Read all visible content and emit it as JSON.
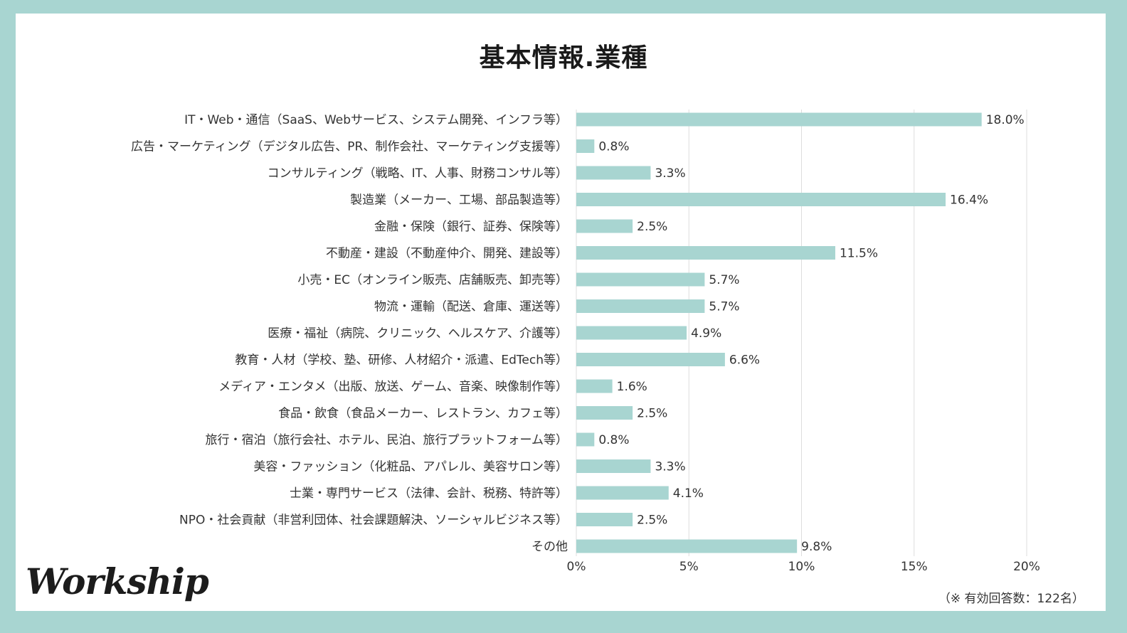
{
  "colors": {
    "bar": "#a8d5d1",
    "frame": "#a8d5d1",
    "grid": "#dddddd",
    "text": "#333333"
  },
  "logo": {
    "text": "Workship"
  },
  "note": "（※ 有効回答数：122名）",
  "chart_data": {
    "type": "bar",
    "orientation": "horizontal",
    "title": "基本情報.業種",
    "xlabel": "",
    "ylabel": "",
    "xlim": [
      0,
      20
    ],
    "grid": true,
    "xticks": [
      "0%",
      "5%",
      "10%",
      "15%",
      "20%"
    ],
    "categories": [
      "IT・Web・通信（SaaS、Webサービス、システム開発、インフラ等）",
      "広告・マーケティング（デジタル広告、PR、制作会社、マーケティング支援等）",
      "コンサルティング（戦略、IT、人事、財務コンサル等）",
      "製造業（メーカー、工場、部品製造等）",
      "金融・保険（銀行、証券、保険等）",
      "不動産・建設（不動産仲介、開発、建設等）",
      "小売・EC（オンライン販売、店舗販売、卸売等）",
      "物流・運輸（配送、倉庫、運送等）",
      "医療・福祉（病院、クリニック、ヘルスケア、介護等）",
      "教育・人材（学校、塾、研修、人材紹介・派遣、EdTech等）",
      "メディア・エンタメ（出版、放送、ゲーム、音楽、映像制作等）",
      "食品・飲食（食品メーカー、レストラン、カフェ等）",
      "旅行・宿泊（旅行会社、ホテル、民泊、旅行プラットフォーム等）",
      "美容・ファッション（化粧品、アパレル、美容サロン等）",
      "士業・専門サービス（法律、会計、税務、特許等）",
      "NPO・社会貢献（非営利団体、社会課題解決、ソーシャルビジネス等）",
      "その他"
    ],
    "values": [
      18.0,
      0.8,
      3.3,
      16.4,
      2.5,
      11.5,
      5.7,
      5.7,
      4.9,
      6.6,
      1.6,
      2.5,
      0.8,
      3.3,
      4.1,
      2.5,
      9.8
    ],
    "labels": [
      "18.0%",
      "0.8%",
      "3.3%",
      "16.4%",
      "2.5%",
      "11.5%",
      "5.7%",
      "5.7%",
      "4.9%",
      "6.6%",
      "1.6%",
      "2.5%",
      "0.8%",
      "3.3%",
      "4.1%",
      "2.5%",
      "9.8%"
    ]
  }
}
